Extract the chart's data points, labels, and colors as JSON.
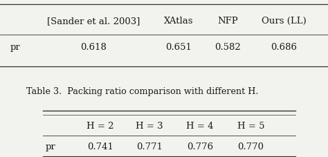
{
  "table1_headers": [
    "[Sander et al. 2003]",
    "XAtlas",
    "NFP",
    "Ours (LL)"
  ],
  "table1_row_label": "pr",
  "table1_values": [
    "0.618",
    "0.651",
    "0.582",
    "0.686"
  ],
  "caption": "Table 3.  Packing ratio comparison with different H.",
  "table2_headers": [
    "H = 2",
    "H = 3",
    "H = 4",
    "H = 5"
  ],
  "table2_row_label": "pr",
  "table2_values": [
    "0.741",
    "0.771",
    "0.776",
    "0.770"
  ],
  "bg_color": "#f2f2ee",
  "text_color": "#1a1a1a",
  "line_color": "#333333",
  "fontsize": 9.5,
  "caption_fontsize": 9.2
}
